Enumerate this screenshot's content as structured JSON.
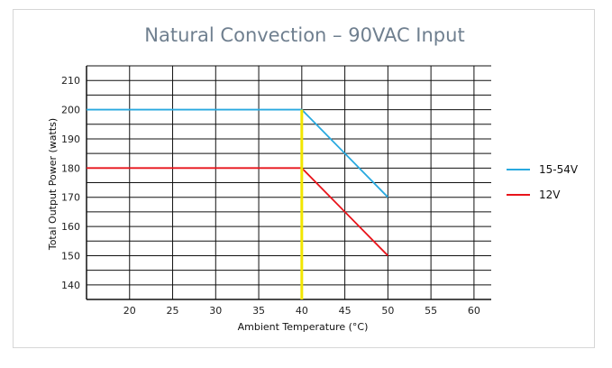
{
  "chart_data": {
    "type": "line",
    "title": "Natural Convection – 90VAC Input",
    "xlabel": "Ambient Temperature (°C)",
    "ylabel": "Total Output Power (watts)",
    "xlim": [
      15,
      62
    ],
    "ylim": [
      135,
      215
    ],
    "x_ticks": [
      20,
      25,
      30,
      35,
      40,
      45,
      50,
      55,
      60
    ],
    "y_ticks": [
      140,
      150,
      160,
      170,
      180,
      190,
      200,
      210
    ],
    "grid": true,
    "legend": "right",
    "marker_line": {
      "x": 40,
      "color": "#f2e600"
    },
    "series": [
      {
        "name": "15-54V",
        "color": "#29a9df",
        "x": [
          15,
          40,
          50
        ],
        "y": [
          200,
          200,
          170
        ]
      },
      {
        "name": "12V",
        "color": "#e8141b",
        "x": [
          15,
          40,
          50
        ],
        "y": [
          180,
          180,
          150
        ]
      }
    ]
  }
}
